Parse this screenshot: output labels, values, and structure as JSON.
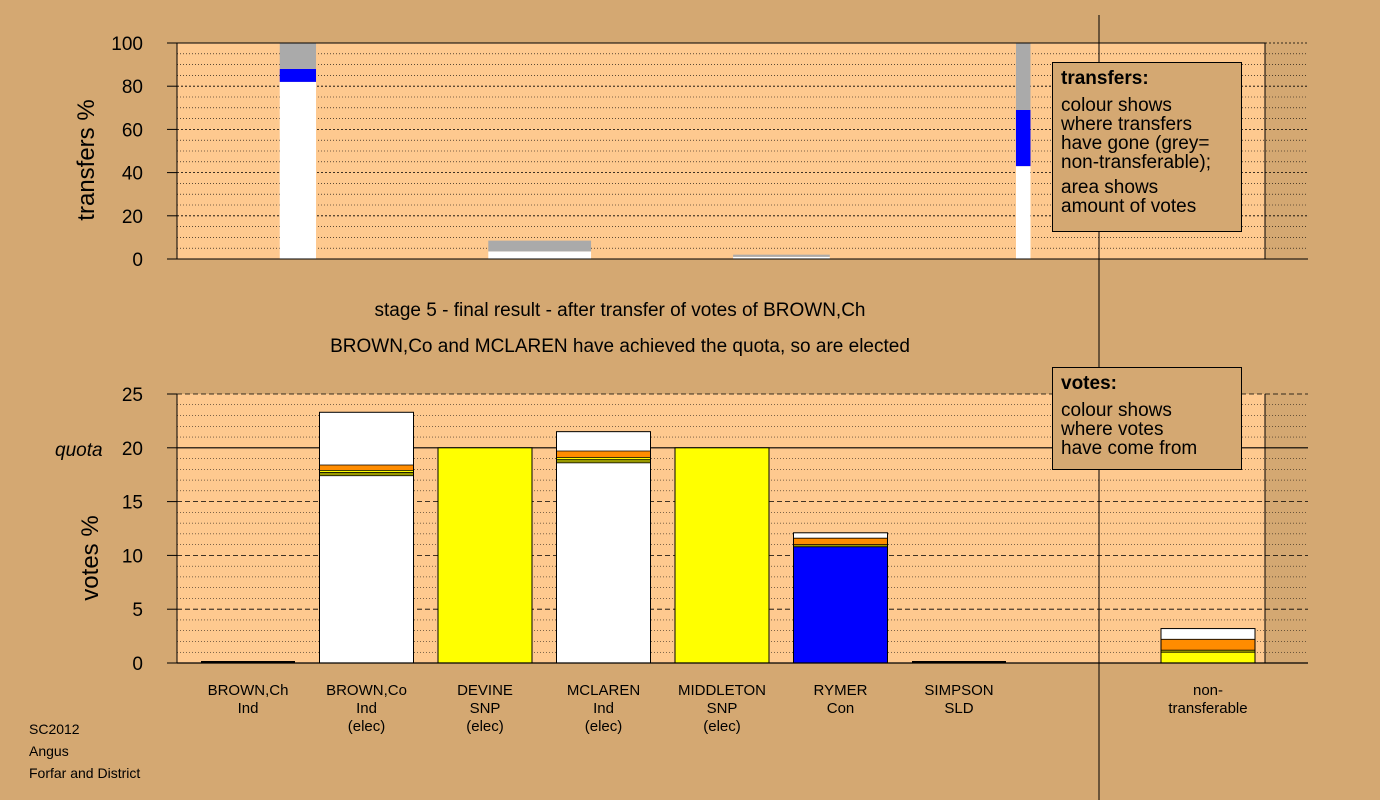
{
  "colors": {
    "background": "#d4a872",
    "plot_bg": "#fec98f",
    "white": "#ffffff",
    "grey": "#aaaaaa",
    "blue": "#0000ff",
    "yellow": "#ffff00",
    "orange": "#ff8c00",
    "olive": "#999900"
  },
  "subtitle_line1": "stage 5 - final result - after transfer of votes of BROWN,Ch",
  "subtitle_line2": "BROWN,Co and MCLAREN have achieved the quota, so are elected",
  "legend_transfers": {
    "title": "transfers:",
    "text1_lines": [
      "colour shows",
      "where transfers",
      "have gone (grey=",
      "non-transferable);"
    ],
    "text2_lines": [
      "area shows",
      "amount of votes"
    ]
  },
  "legend_votes": {
    "title": "votes:",
    "text_lines": [
      "colour shows",
      "where votes",
      "have come from"
    ]
  },
  "footer": {
    "election": "SC2012",
    "council": "Angus",
    "ward": "Forfar and District"
  },
  "candidates": [
    {
      "name": "BROWN,Ch",
      "party": "Ind",
      "status": ""
    },
    {
      "name": "BROWN,Co",
      "party": "Ind",
      "status": "(elec)"
    },
    {
      "name": "DEVINE",
      "party": "SNP",
      "status": "(elec)"
    },
    {
      "name": "MCLAREN",
      "party": "Ind",
      "status": "(elec)"
    },
    {
      "name": "MIDDLETON",
      "party": "SNP",
      "status": "(elec)"
    },
    {
      "name": "RYMER",
      "party": "Con",
      "status": ""
    },
    {
      "name": "SIMPSON",
      "party": "SLD",
      "status": ""
    }
  ],
  "nontransferable_label_lines": [
    "non-",
    "transferable"
  ],
  "chart_data": [
    {
      "type": "bar",
      "ylabel": "transfers %",
      "ylim": [
        0,
        100
      ],
      "yticks": [
        0,
        20,
        40,
        60,
        80,
        100
      ],
      "bars": [
        {
          "x_center": 1,
          "width_frac": 0.3,
          "segments": [
            {
              "color": "white",
              "from": 0,
              "to": 82
            },
            {
              "color": "blue",
              "from": 82,
              "to": 88
            },
            {
              "color": "grey",
              "from": 88,
              "to": 100
            }
          ]
        },
        {
          "x_center": 3,
          "width_frac": 0.85,
          "segments": [
            {
              "color": "white",
              "from": 0,
              "to": 3.5
            },
            {
              "color": "grey",
              "from": 3.5,
              "to": 8.5
            }
          ]
        },
        {
          "x_center": 5,
          "width_frac": 0.8,
          "segments": [
            {
              "color": "white",
              "from": 0,
              "to": 1
            },
            {
              "color": "grey",
              "from": 1,
              "to": 2
            }
          ]
        },
        {
          "x_center": 7,
          "width_frac": 0.12,
          "segments": [
            {
              "color": "white",
              "from": 0,
              "to": 43
            },
            {
              "color": "blue",
              "from": 43,
              "to": 69
            },
            {
              "color": "grey",
              "from": 69,
              "to": 100
            }
          ]
        }
      ]
    },
    {
      "type": "bar",
      "ylabel": "votes %",
      "ylim": [
        0,
        25
      ],
      "yticks": [
        0,
        5,
        10,
        15,
        20,
        25
      ],
      "quota": 20,
      "quota_label": "quota",
      "bars": [
        {
          "candidate": "BROWN,Ch",
          "total": 0,
          "segments": []
        },
        {
          "candidate": "BROWN,Co",
          "total": 23.3,
          "segments": [
            {
              "color": "white",
              "from": 0,
              "to": 17.4
            },
            {
              "color": "olive",
              "from": 17.4,
              "to": 17.7
            },
            {
              "color": "yellow",
              "from": 17.7,
              "to": 17.9
            },
            {
              "color": "orange",
              "from": 17.9,
              "to": 18.4
            },
            {
              "color": "white",
              "from": 18.4,
              "to": 23.3
            }
          ]
        },
        {
          "candidate": "DEVINE",
          "total": 20,
          "segments": [
            {
              "color": "yellow",
              "from": 0,
              "to": 20
            }
          ]
        },
        {
          "candidate": "MCLAREN",
          "total": 21.5,
          "segments": [
            {
              "color": "white",
              "from": 0,
              "to": 18.6
            },
            {
              "color": "olive",
              "from": 18.6,
              "to": 18.9
            },
            {
              "color": "yellow",
              "from": 18.9,
              "to": 19.1
            },
            {
              "color": "orange",
              "from": 19.1,
              "to": 19.7
            },
            {
              "color": "white",
              "from": 19.7,
              "to": 21.5
            }
          ]
        },
        {
          "candidate": "MIDDLETON",
          "total": 20,
          "segments": [
            {
              "color": "yellow",
              "from": 0,
              "to": 20
            }
          ]
        },
        {
          "candidate": "RYMER",
          "total": 12.1,
          "segments": [
            {
              "color": "blue",
              "from": 0,
              "to": 10.8
            },
            {
              "color": "olive",
              "from": 10.8,
              "to": 11.0
            },
            {
              "color": "orange",
              "from": 11.0,
              "to": 11.6
            },
            {
              "color": "white",
              "from": 11.6,
              "to": 12.1
            }
          ]
        },
        {
          "candidate": "SIMPSON",
          "total": 0,
          "segments": []
        },
        {
          "candidate": "non-transferable",
          "total": 3.2,
          "segments": [
            {
              "color": "yellow",
              "from": 0,
              "to": 1.0
            },
            {
              "color": "olive",
              "from": 1.0,
              "to": 1.2
            },
            {
              "color": "orange",
              "from": 1.2,
              "to": 2.2
            },
            {
              "color": "white",
              "from": 2.2,
              "to": 3.2
            }
          ]
        }
      ]
    }
  ]
}
